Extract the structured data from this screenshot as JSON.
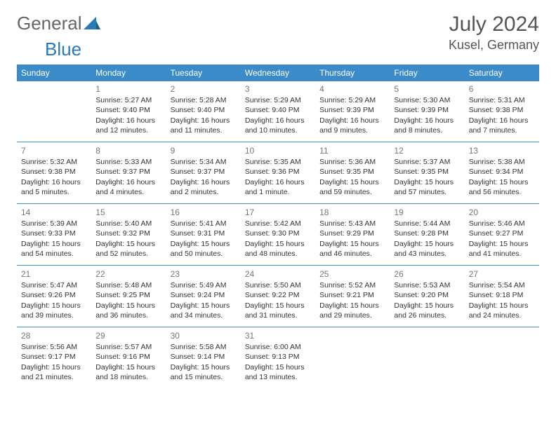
{
  "brand": {
    "part1": "General",
    "part2": "Blue"
  },
  "title": "July 2024",
  "location": "Kusel, Germany",
  "colors": {
    "header_bg": "#3b8bc8",
    "header_text": "#ffffff",
    "daynum": "#777777",
    "text": "#333333",
    "rule": "#3b8bc8",
    "brand_blue": "#2a7ab8"
  },
  "days_of_week": [
    "Sunday",
    "Monday",
    "Tuesday",
    "Wednesday",
    "Thursday",
    "Friday",
    "Saturday"
  ],
  "weeks": [
    [
      null,
      {
        "n": "1",
        "sr": "Sunrise: 5:27 AM",
        "ss": "Sunset: 9:40 PM",
        "dl1": "Daylight: 16 hours",
        "dl2": "and 12 minutes."
      },
      {
        "n": "2",
        "sr": "Sunrise: 5:28 AM",
        "ss": "Sunset: 9:40 PM",
        "dl1": "Daylight: 16 hours",
        "dl2": "and 11 minutes."
      },
      {
        "n": "3",
        "sr": "Sunrise: 5:29 AM",
        "ss": "Sunset: 9:40 PM",
        "dl1": "Daylight: 16 hours",
        "dl2": "and 10 minutes."
      },
      {
        "n": "4",
        "sr": "Sunrise: 5:29 AM",
        "ss": "Sunset: 9:39 PM",
        "dl1": "Daylight: 16 hours",
        "dl2": "and 9 minutes."
      },
      {
        "n": "5",
        "sr": "Sunrise: 5:30 AM",
        "ss": "Sunset: 9:39 PM",
        "dl1": "Daylight: 16 hours",
        "dl2": "and 8 minutes."
      },
      {
        "n": "6",
        "sr": "Sunrise: 5:31 AM",
        "ss": "Sunset: 9:38 PM",
        "dl1": "Daylight: 16 hours",
        "dl2": "and 7 minutes."
      }
    ],
    [
      {
        "n": "7",
        "sr": "Sunrise: 5:32 AM",
        "ss": "Sunset: 9:38 PM",
        "dl1": "Daylight: 16 hours",
        "dl2": "and 5 minutes."
      },
      {
        "n": "8",
        "sr": "Sunrise: 5:33 AM",
        "ss": "Sunset: 9:37 PM",
        "dl1": "Daylight: 16 hours",
        "dl2": "and 4 minutes."
      },
      {
        "n": "9",
        "sr": "Sunrise: 5:34 AM",
        "ss": "Sunset: 9:37 PM",
        "dl1": "Daylight: 16 hours",
        "dl2": "and 2 minutes."
      },
      {
        "n": "10",
        "sr": "Sunrise: 5:35 AM",
        "ss": "Sunset: 9:36 PM",
        "dl1": "Daylight: 16 hours",
        "dl2": "and 1 minute."
      },
      {
        "n": "11",
        "sr": "Sunrise: 5:36 AM",
        "ss": "Sunset: 9:35 PM",
        "dl1": "Daylight: 15 hours",
        "dl2": "and 59 minutes."
      },
      {
        "n": "12",
        "sr": "Sunrise: 5:37 AM",
        "ss": "Sunset: 9:35 PM",
        "dl1": "Daylight: 15 hours",
        "dl2": "and 57 minutes."
      },
      {
        "n": "13",
        "sr": "Sunrise: 5:38 AM",
        "ss": "Sunset: 9:34 PM",
        "dl1": "Daylight: 15 hours",
        "dl2": "and 56 minutes."
      }
    ],
    [
      {
        "n": "14",
        "sr": "Sunrise: 5:39 AM",
        "ss": "Sunset: 9:33 PM",
        "dl1": "Daylight: 15 hours",
        "dl2": "and 54 minutes."
      },
      {
        "n": "15",
        "sr": "Sunrise: 5:40 AM",
        "ss": "Sunset: 9:32 PM",
        "dl1": "Daylight: 15 hours",
        "dl2": "and 52 minutes."
      },
      {
        "n": "16",
        "sr": "Sunrise: 5:41 AM",
        "ss": "Sunset: 9:31 PM",
        "dl1": "Daylight: 15 hours",
        "dl2": "and 50 minutes."
      },
      {
        "n": "17",
        "sr": "Sunrise: 5:42 AM",
        "ss": "Sunset: 9:30 PM",
        "dl1": "Daylight: 15 hours",
        "dl2": "and 48 minutes."
      },
      {
        "n": "18",
        "sr": "Sunrise: 5:43 AM",
        "ss": "Sunset: 9:29 PM",
        "dl1": "Daylight: 15 hours",
        "dl2": "and 46 minutes."
      },
      {
        "n": "19",
        "sr": "Sunrise: 5:44 AM",
        "ss": "Sunset: 9:28 PM",
        "dl1": "Daylight: 15 hours",
        "dl2": "and 43 minutes."
      },
      {
        "n": "20",
        "sr": "Sunrise: 5:46 AM",
        "ss": "Sunset: 9:27 PM",
        "dl1": "Daylight: 15 hours",
        "dl2": "and 41 minutes."
      }
    ],
    [
      {
        "n": "21",
        "sr": "Sunrise: 5:47 AM",
        "ss": "Sunset: 9:26 PM",
        "dl1": "Daylight: 15 hours",
        "dl2": "and 39 minutes."
      },
      {
        "n": "22",
        "sr": "Sunrise: 5:48 AM",
        "ss": "Sunset: 9:25 PM",
        "dl1": "Daylight: 15 hours",
        "dl2": "and 36 minutes."
      },
      {
        "n": "23",
        "sr": "Sunrise: 5:49 AM",
        "ss": "Sunset: 9:24 PM",
        "dl1": "Daylight: 15 hours",
        "dl2": "and 34 minutes."
      },
      {
        "n": "24",
        "sr": "Sunrise: 5:50 AM",
        "ss": "Sunset: 9:22 PM",
        "dl1": "Daylight: 15 hours",
        "dl2": "and 31 minutes."
      },
      {
        "n": "25",
        "sr": "Sunrise: 5:52 AM",
        "ss": "Sunset: 9:21 PM",
        "dl1": "Daylight: 15 hours",
        "dl2": "and 29 minutes."
      },
      {
        "n": "26",
        "sr": "Sunrise: 5:53 AM",
        "ss": "Sunset: 9:20 PM",
        "dl1": "Daylight: 15 hours",
        "dl2": "and 26 minutes."
      },
      {
        "n": "27",
        "sr": "Sunrise: 5:54 AM",
        "ss": "Sunset: 9:18 PM",
        "dl1": "Daylight: 15 hours",
        "dl2": "and 24 minutes."
      }
    ],
    [
      {
        "n": "28",
        "sr": "Sunrise: 5:56 AM",
        "ss": "Sunset: 9:17 PM",
        "dl1": "Daylight: 15 hours",
        "dl2": "and 21 minutes."
      },
      {
        "n": "29",
        "sr": "Sunrise: 5:57 AM",
        "ss": "Sunset: 9:16 PM",
        "dl1": "Daylight: 15 hours",
        "dl2": "and 18 minutes."
      },
      {
        "n": "30",
        "sr": "Sunrise: 5:58 AM",
        "ss": "Sunset: 9:14 PM",
        "dl1": "Daylight: 15 hours",
        "dl2": "and 15 minutes."
      },
      {
        "n": "31",
        "sr": "Sunrise: 6:00 AM",
        "ss": "Sunset: 9:13 PM",
        "dl1": "Daylight: 15 hours",
        "dl2": "and 13 minutes."
      },
      null,
      null,
      null
    ]
  ]
}
